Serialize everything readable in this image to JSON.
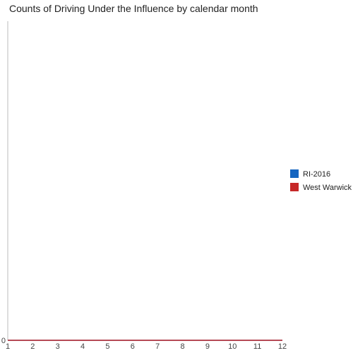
{
  "chart_data": {
    "type": "line",
    "title": "Counts of Driving Under the Influence by calendar month",
    "xlabel": "",
    "ylabel": "",
    "x": [
      1,
      2,
      3,
      4,
      5,
      6,
      7,
      8,
      9,
      10,
      11,
      12
    ],
    "x_tick_labels": [
      "1",
      "2",
      "3",
      "4",
      "5",
      "6",
      "7",
      "8",
      "9",
      "10",
      "11",
      "12"
    ],
    "y_tick_labels": [
      "0"
    ],
    "xlim": [
      1,
      12
    ],
    "ylim": [
      0,
      1
    ],
    "grid": false,
    "legend_position": "right",
    "series": [
      {
        "name": "RI-2016",
        "color": "#1565c0",
        "values": [
          0,
          0,
          0,
          0,
          0,
          0,
          0,
          0,
          0,
          0,
          0,
          0
        ]
      },
      {
        "name": "West Warwick",
        "color": "#c62828",
        "values": [
          0,
          0,
          0,
          0,
          0,
          0,
          0,
          0,
          0,
          0,
          0,
          0
        ]
      }
    ]
  }
}
